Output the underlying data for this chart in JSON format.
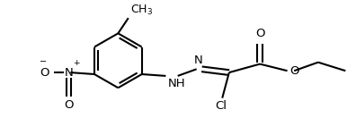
{
  "bg_color": "#ffffff",
  "line_color": "#000000",
  "lw": 1.5,
  "fs": 9.5,
  "figsize": [
    3.96,
    1.32
  ],
  "dpi": 100,
  "xlim": [
    0,
    396
  ],
  "ylim": [
    0,
    132
  ]
}
